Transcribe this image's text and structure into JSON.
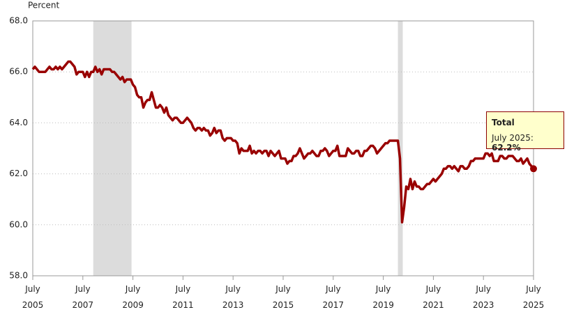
{
  "chart_data": {
    "type": "line",
    "y_label": "Percent",
    "xlim": [
      "2005-07",
      "2025-07"
    ],
    "xticks": [
      {
        "value": "2005-07",
        "label": "July 2005"
      },
      {
        "value": "2007-07",
        "label": "July 2007"
      },
      {
        "value": "2009-07",
        "label": "July 2009"
      },
      {
        "value": "2011-07",
        "label": "July 2011"
      },
      {
        "value": "2013-07",
        "label": "July 2013"
      },
      {
        "value": "2015-07",
        "label": "July 2015"
      },
      {
        "value": "2017-07",
        "label": "July 2017"
      },
      {
        "value": "2019-07",
        "label": "July 2019"
      },
      {
        "value": "2021-07",
        "label": "July 2021"
      },
      {
        "value": "2023-07",
        "label": "July 2023"
      },
      {
        "value": "2025-07",
        "label": "July 2025"
      }
    ],
    "ylim": [
      58,
      68
    ],
    "yticks": [
      {
        "value": 58,
        "label": "58.0"
      },
      {
        "value": 60,
        "label": "60.0"
      },
      {
        "value": 62,
        "label": "62.0"
      },
      {
        "value": 64,
        "label": "64.0"
      },
      {
        "value": 66,
        "label": "66.0"
      },
      {
        "value": 68,
        "label": "68.0"
      }
    ],
    "grid": true,
    "shaded_periods": [
      [
        "2007-12",
        "2009-06"
      ],
      [
        "2020-02",
        "2020-04"
      ]
    ],
    "shade_color": "#dcdcdc",
    "x": [
      "2005-07",
      "2005-08",
      "2005-09",
      "2005-10",
      "2005-11",
      "2005-12",
      "2006-01",
      "2006-02",
      "2006-03",
      "2006-04",
      "2006-05",
      "2006-06",
      "2006-07",
      "2006-08",
      "2006-09",
      "2006-10",
      "2006-11",
      "2006-12",
      "2007-01",
      "2007-02",
      "2007-03",
      "2007-04",
      "2007-05",
      "2007-06",
      "2007-07",
      "2007-08",
      "2007-09",
      "2007-10",
      "2007-11",
      "2007-12",
      "2008-01",
      "2008-02",
      "2008-03",
      "2008-04",
      "2008-05",
      "2008-06",
      "2008-07",
      "2008-08",
      "2008-09",
      "2008-10",
      "2008-11",
      "2008-12",
      "2009-01",
      "2009-02",
      "2009-03",
      "2009-04",
      "2009-05",
      "2009-06",
      "2009-07",
      "2009-08",
      "2009-09",
      "2009-10",
      "2009-11",
      "2009-12",
      "2010-01",
      "2010-02",
      "2010-03",
      "2010-04",
      "2010-05",
      "2010-06",
      "2010-07",
      "2010-08",
      "2010-09",
      "2010-10",
      "2010-11",
      "2010-12",
      "2011-01",
      "2011-02",
      "2011-03",
      "2011-04",
      "2011-05",
      "2011-06",
      "2011-07",
      "2011-08",
      "2011-09",
      "2011-10",
      "2011-11",
      "2011-12",
      "2012-01",
      "2012-02",
      "2012-03",
      "2012-04",
      "2012-05",
      "2012-06",
      "2012-07",
      "2012-08",
      "2012-09",
      "2012-10",
      "2012-11",
      "2012-12",
      "2013-01",
      "2013-02",
      "2013-03",
      "2013-04",
      "2013-05",
      "2013-06",
      "2013-07",
      "2013-08",
      "2013-09",
      "2013-10",
      "2013-11",
      "2013-12",
      "2014-01",
      "2014-02",
      "2014-03",
      "2014-04",
      "2014-05",
      "2014-06",
      "2014-07",
      "2014-08",
      "2014-09",
      "2014-10",
      "2014-11",
      "2014-12",
      "2015-01",
      "2015-02",
      "2015-03",
      "2015-04",
      "2015-05",
      "2015-06",
      "2015-07",
      "2015-08",
      "2015-09",
      "2015-10",
      "2015-11",
      "2015-12",
      "2016-01",
      "2016-02",
      "2016-03",
      "2016-04",
      "2016-05",
      "2016-06",
      "2016-07",
      "2016-08",
      "2016-09",
      "2016-10",
      "2016-11",
      "2016-12",
      "2017-01",
      "2017-02",
      "2017-03",
      "2017-04",
      "2017-05",
      "2017-06",
      "2017-07",
      "2017-08",
      "2017-09",
      "2017-10",
      "2017-11",
      "2017-12",
      "2018-01",
      "2018-02",
      "2018-03",
      "2018-04",
      "2018-05",
      "2018-06",
      "2018-07",
      "2018-08",
      "2018-09",
      "2018-10",
      "2018-11",
      "2018-12",
      "2019-01",
      "2019-02",
      "2019-03",
      "2019-04",
      "2019-05",
      "2019-06",
      "2019-07",
      "2019-08",
      "2019-09",
      "2019-10",
      "2019-11",
      "2019-12",
      "2020-01",
      "2020-02",
      "2020-03",
      "2020-04",
      "2020-05",
      "2020-06",
      "2020-07",
      "2020-08",
      "2020-09",
      "2020-10",
      "2020-11",
      "2020-12",
      "2021-01",
      "2021-02",
      "2021-03",
      "2021-04",
      "2021-05",
      "2021-06",
      "2021-07",
      "2021-08",
      "2021-09",
      "2021-10",
      "2021-11",
      "2021-12",
      "2022-01",
      "2022-02",
      "2022-03",
      "2022-04",
      "2022-05",
      "2022-06",
      "2022-07",
      "2022-08",
      "2022-09",
      "2022-10",
      "2022-11",
      "2022-12",
      "2023-01",
      "2023-02",
      "2023-03",
      "2023-04",
      "2023-05",
      "2023-06",
      "2023-07",
      "2023-08",
      "2023-09",
      "2023-10",
      "2023-11",
      "2023-12",
      "2024-01",
      "2024-02",
      "2024-03",
      "2024-04",
      "2024-05",
      "2024-06",
      "2024-07",
      "2024-08",
      "2024-09",
      "2024-10",
      "2024-11",
      "2024-12",
      "2025-01",
      "2025-02",
      "2025-03",
      "2025-04",
      "2025-05",
      "2025-06",
      "2025-07"
    ],
    "series": [
      {
        "name": "Total",
        "color": "#990000",
        "values": [
          66.1,
          66.2,
          66.1,
          66.0,
          66.0,
          66.0,
          66.0,
          66.1,
          66.2,
          66.1,
          66.1,
          66.2,
          66.1,
          66.2,
          66.1,
          66.2,
          66.3,
          66.4,
          66.4,
          66.3,
          66.2,
          65.9,
          66.0,
          66.0,
          66.0,
          65.8,
          66.0,
          65.8,
          66.0,
          66.0,
          66.2,
          66.0,
          66.1,
          65.9,
          66.1,
          66.1,
          66.1,
          66.1,
          66.0,
          66.0,
          65.9,
          65.8,
          65.7,
          65.8,
          65.6,
          65.7,
          65.7,
          65.7,
          65.5,
          65.4,
          65.1,
          65.0,
          65.0,
          64.6,
          64.8,
          64.9,
          64.9,
          65.2,
          64.9,
          64.6,
          64.6,
          64.7,
          64.6,
          64.4,
          64.6,
          64.3,
          64.2,
          64.1,
          64.2,
          64.2,
          64.1,
          64.0,
          64.0,
          64.1,
          64.2,
          64.1,
          64.0,
          63.8,
          63.7,
          63.8,
          63.8,
          63.7,
          63.8,
          63.7,
          63.7,
          63.5,
          63.6,
          63.8,
          63.6,
          63.7,
          63.7,
          63.4,
          63.3,
          63.4,
          63.4,
          63.4,
          63.3,
          63.3,
          63.2,
          62.8,
          63.0,
          62.9,
          62.9,
          62.9,
          63.1,
          62.8,
          62.9,
          62.8,
          62.9,
          62.9,
          62.8,
          62.9,
          62.9,
          62.7,
          62.9,
          62.8,
          62.7,
          62.8,
          62.9,
          62.6,
          62.6,
          62.6,
          62.4,
          62.5,
          62.5,
          62.7,
          62.7,
          62.8,
          63.0,
          62.8,
          62.6,
          62.7,
          62.8,
          62.8,
          62.9,
          62.8,
          62.7,
          62.7,
          62.9,
          62.9,
          63.0,
          62.9,
          62.7,
          62.8,
          62.9,
          62.9,
          63.1,
          62.7,
          62.7,
          62.7,
          62.7,
          63.0,
          62.9,
          62.8,
          62.8,
          62.9,
          62.9,
          62.7,
          62.7,
          62.9,
          62.9,
          63.0,
          63.1,
          63.1,
          63.0,
          62.8,
          62.9,
          63.0,
          63.1,
          63.2,
          63.2,
          63.3,
          63.3,
          63.3,
          63.3,
          63.3,
          62.6,
          60.1,
          60.7,
          61.5,
          61.4,
          61.8,
          61.4,
          61.7,
          61.5,
          61.5,
          61.4,
          61.4,
          61.5,
          61.6,
          61.6,
          61.7,
          61.8,
          61.7,
          61.8,
          61.9,
          62.0,
          62.2,
          62.2,
          62.3,
          62.3,
          62.2,
          62.3,
          62.2,
          62.1,
          62.3,
          62.3,
          62.2,
          62.2,
          62.3,
          62.5,
          62.5,
          62.6,
          62.6,
          62.6,
          62.6,
          62.6,
          62.8,
          62.8,
          62.7,
          62.8,
          62.5,
          62.5,
          62.5,
          62.7,
          62.7,
          62.6,
          62.6,
          62.7,
          62.7,
          62.7,
          62.6,
          62.5,
          62.5,
          62.6,
          62.4,
          62.5,
          62.6,
          62.4,
          62.3,
          62.2
        ]
      }
    ],
    "tooltip": {
      "title": "Total",
      "label": "July 2025:",
      "value": "62.2%",
      "point": 240
    }
  }
}
